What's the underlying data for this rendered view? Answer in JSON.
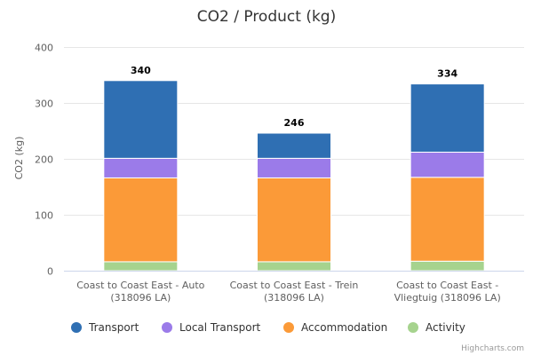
{
  "chart_data": {
    "type": "bar",
    "stacked": true,
    "title": "CO2 / Product (kg)",
    "ylabel": "CO2 (kg)",
    "xlabel": "",
    "ylim": [
      0,
      400
    ],
    "yticks": [
      0,
      100,
      200,
      300,
      400
    ],
    "categories": [
      [
        "Coast to Coast East - Auto",
        "(318096 LA)"
      ],
      [
        "Coast to Coast East - Trein",
        "(318096 LA)"
      ],
      [
        "Coast to Coast East -",
        "Vliegtuig (318096 LA)"
      ]
    ],
    "series": [
      {
        "name": "Transport",
        "color": "#2f6fb3",
        "values": [
          139,
          45,
          122
        ]
      },
      {
        "name": "Local Transport",
        "color": "#9b7be9",
        "values": [
          35,
          35,
          45
        ]
      },
      {
        "name": "Accommodation",
        "color": "#fb9a38",
        "values": [
          150,
          150,
          150
        ]
      },
      {
        "name": "Activity",
        "color": "#a6d38e",
        "values": [
          16,
          16,
          17
        ]
      }
    ],
    "totals": [
      340,
      246,
      334
    ],
    "legend_position": "bottom",
    "credits": "Highcharts.com"
  }
}
